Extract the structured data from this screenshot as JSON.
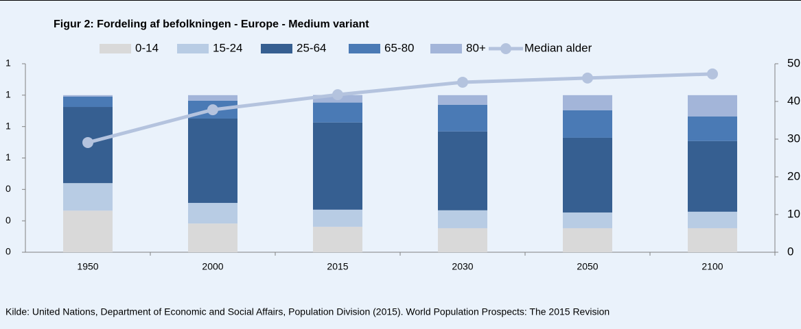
{
  "chart_data": {
    "type": "bar",
    "stacked": true,
    "title": "Figur 2: Fordeling af befolkningen - Europe - Medium variant",
    "source": "Kilde: United Nations, Department of Economic and Social Affairs, Population Division (2015). World Population Prospects: The 2015 Revision",
    "categories": [
      "1950",
      "2000",
      "2015",
      "2030",
      "2050",
      "2100"
    ],
    "series": [
      {
        "name": "0-14",
        "color": "#d9d9d9",
        "values": [
          0.265,
          0.183,
          0.162,
          0.153,
          0.153,
          0.153
        ]
      },
      {
        "name": "15-24",
        "color": "#b8cce4",
        "values": [
          0.175,
          0.131,
          0.109,
          0.114,
          0.1,
          0.105
        ]
      },
      {
        "name": "25-64",
        "color": "#365f91",
        "values": [
          0.485,
          0.537,
          0.555,
          0.502,
          0.476,
          0.45
        ]
      },
      {
        "name": "65-80",
        "color": "#4a7ab5",
        "values": [
          0.066,
          0.114,
          0.127,
          0.17,
          0.175,
          0.157
        ]
      },
      {
        "name": "80+",
        "color": "#a3b5d9",
        "values": [
          0.009,
          0.035,
          0.048,
          0.061,
          0.096,
          0.135
        ]
      },
      {
        "name": "Median alder",
        "color": "#b4c3de",
        "type": "line",
        "axis": "y2",
        "values": [
          29.1,
          37.8,
          41.8,
          45.1,
          46.2,
          47.3
        ]
      }
    ],
    "ylim": [
      0,
      1.2
    ],
    "yticks": [
      0,
      {
        "value": 0.2,
        "label": "0"
      },
      {
        "value": 0.4,
        "label": "0"
      },
      {
        "value": 0.6,
        "label": "1"
      },
      {
        "value": 0.8,
        "label": "1"
      },
      1,
      {
        "value": 1.2,
        "label": "1"
      }
    ],
    "y2lim": [
      0,
      50
    ],
    "y2ticks": [
      0,
      10,
      20,
      30,
      40,
      50
    ],
    "grid": false
  }
}
